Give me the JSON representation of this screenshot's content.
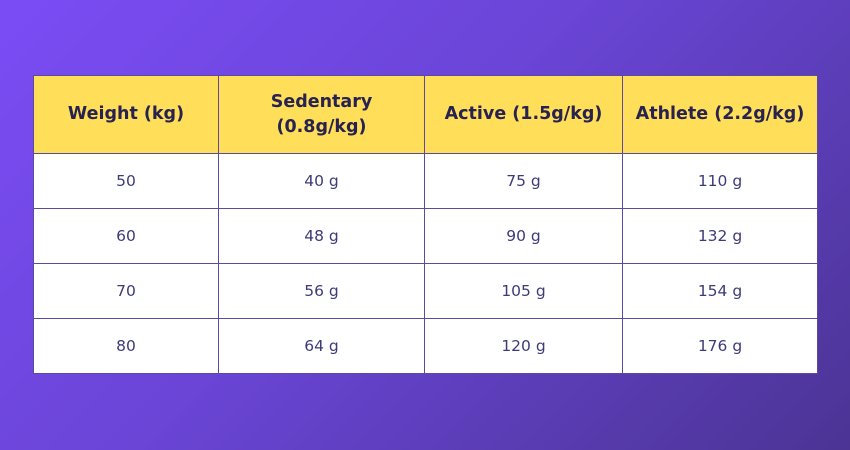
{
  "table": {
    "headers": [
      "Weight (kg)",
      "Sedentary (0.8g/kg)",
      "Active (1.5g/kg)",
      "Athlete (2.2g/kg)"
    ],
    "rows": [
      [
        "50",
        "40 g",
        "75 g",
        "110 g"
      ],
      [
        "60",
        "48 g",
        "90 g",
        "132 g"
      ],
      [
        "70",
        "56 g",
        "105 g",
        "154 g"
      ],
      [
        "80",
        "64 g",
        "120 g",
        "176 g"
      ]
    ]
  },
  "colors": {
    "header_background": "#ffde59",
    "header_text": "#27224f",
    "cell_background": "#ffffff",
    "cell_text": "#3d3a7a",
    "border": "#5b4a9e",
    "background_gradient_start": "#7b4cf5",
    "background_gradient_end": "#4b3494"
  }
}
